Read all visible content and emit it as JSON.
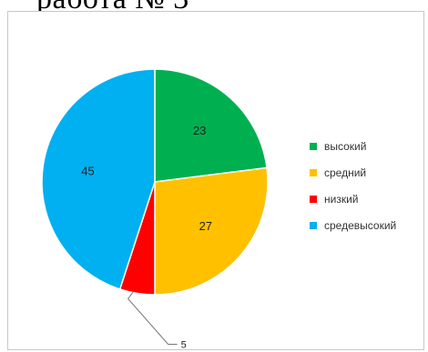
{
  "header_fragment": "работа № 3",
  "chart_data": {
    "type": "pie",
    "slices": [
      {
        "label": "высокий",
        "value": 23,
        "color": "#00b050"
      },
      {
        "label": "средний",
        "value": 27,
        "color": "#ffc000"
      },
      {
        "label": "низкий",
        "value": 5,
        "color": "#ff0000"
      },
      {
        "label": "средевысокий",
        "value": 45,
        "color": "#00b0f0"
      }
    ],
    "legend_position": "right",
    "data_labels": [
      "23",
      "27",
      "5",
      "45"
    ]
  }
}
